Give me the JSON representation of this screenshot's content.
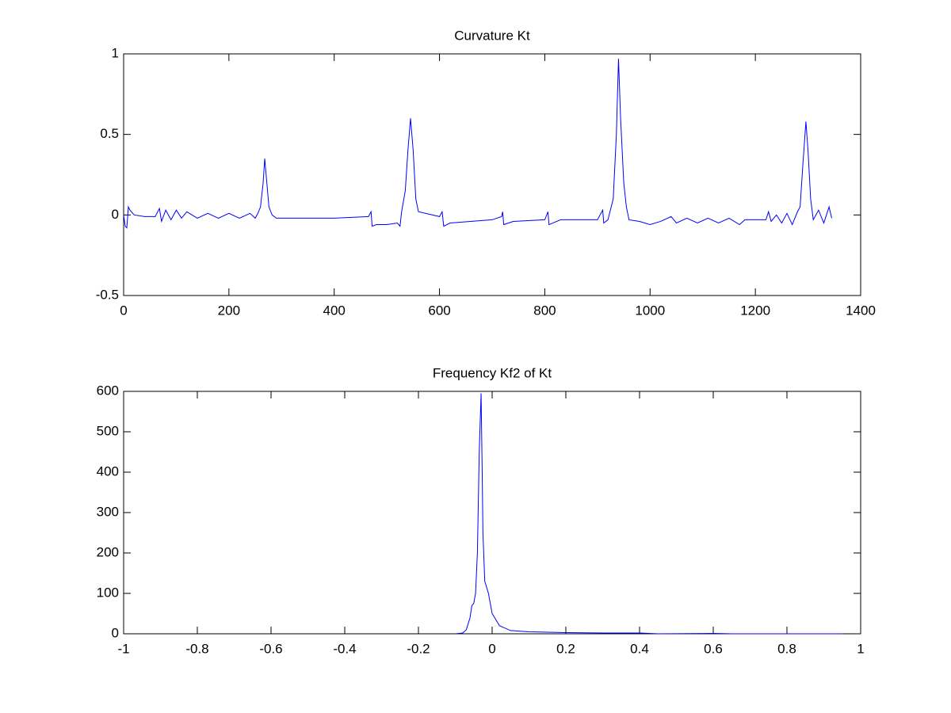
{
  "chart_data": [
    {
      "type": "line",
      "title": "Curvature Kt",
      "x": [
        0,
        3,
        6,
        9,
        12,
        20,
        40,
        60,
        68,
        72,
        80,
        90,
        100,
        110,
        120,
        140,
        160,
        180,
        200,
        220,
        240,
        250,
        255,
        260,
        265,
        268,
        272,
        276,
        282,
        290,
        400,
        465,
        470,
        472,
        480,
        500,
        520,
        525,
        528,
        535,
        540,
        545,
        550,
        555,
        560,
        600,
        605,
        608,
        620,
        700,
        718,
        720,
        722,
        740,
        800,
        806,
        808,
        830,
        900,
        910,
        912,
        920,
        930,
        936,
        940,
        944,
        950,
        955,
        960,
        980,
        1000,
        1020,
        1040,
        1050,
        1070,
        1090,
        1110,
        1130,
        1150,
        1170,
        1180,
        1220,
        1225,
        1230,
        1240,
        1250,
        1260,
        1270,
        1280,
        1285,
        1290,
        1296,
        1300,
        1305,
        1310,
        1320,
        1330,
        1340,
        1345
      ],
      "series": [
        {
          "color": "#0000ff",
          "values": [
            0,
            -0.07,
            -0.08,
            0.05,
            0.03,
            0,
            -0.01,
            -0.01,
            0.04,
            -0.04,
            0.03,
            -0.03,
            0.03,
            -0.02,
            0.02,
            -0.02,
            0.01,
            -0.02,
            0.01,
            -0.02,
            0.01,
            -0.02,
            0.01,
            0.05,
            0.2,
            0.35,
            0.2,
            0.05,
            0,
            -0.02,
            -0.02,
            -0.01,
            0.02,
            -0.07,
            -0.06,
            -0.06,
            -0.05,
            -0.07,
            0.02,
            0.15,
            0.4,
            0.6,
            0.4,
            0.1,
            0.02,
            -0.01,
            0.02,
            -0.07,
            -0.05,
            -0.03,
            -0.01,
            0.02,
            -0.06,
            -0.04,
            -0.03,
            0.02,
            -0.06,
            -0.03,
            -0.03,
            0.03,
            -0.05,
            -0.03,
            0.1,
            0.5,
            0.97,
            0.6,
            0.2,
            0.05,
            -0.03,
            -0.04,
            -0.06,
            -0.04,
            -0.01,
            -0.05,
            -0.02,
            -0.05,
            -0.02,
            -0.05,
            -0.02,
            -0.06,
            -0.03,
            -0.03,
            0.02,
            -0.04,
            0,
            -0.05,
            0.01,
            -0.06,
            0.02,
            0.05,
            0.3,
            0.58,
            0.4,
            0.1,
            -0.03,
            0.03,
            -0.05,
            0.05,
            -0.02
          ]
        }
      ],
      "xlim": [
        0,
        1400
      ],
      "xticks": [
        0,
        200,
        400,
        600,
        800,
        1000,
        1200,
        1400
      ],
      "ylim": [
        -0.5,
        1
      ],
      "yticks": [
        -0.5,
        0,
        0.5,
        1
      ]
    },
    {
      "type": "line",
      "title": "Frequency Kf2 of Kt",
      "x": [
        -0.1,
        -0.08,
        -0.07,
        -0.06,
        -0.055,
        -0.05,
        -0.045,
        -0.04,
        -0.035,
        -0.03,
        -0.027,
        -0.025,
        -0.02,
        -0.01,
        0,
        0.02,
        0.05,
        0.1,
        0.15,
        0.2,
        0.3,
        0.4,
        0.45,
        0.6,
        0.65,
        0.95
      ],
      "series": [
        {
          "color": "#0000ff",
          "values": [
            0,
            2,
            10,
            40,
            70,
            75,
            100,
            200,
            450,
            595,
            400,
            250,
            130,
            100,
            50,
            20,
            8,
            5,
            4,
            3,
            2,
            2,
            0,
            1,
            0,
            0
          ]
        }
      ],
      "xlim": [
        -1,
        1
      ],
      "xticks": [
        -1,
        -0.8,
        -0.6,
        -0.4,
        -0.2,
        0,
        0.2,
        0.4,
        0.6,
        0.8,
        1
      ],
      "ylim": [
        0,
        600
      ],
      "yticks": [
        0,
        100,
        200,
        300,
        400,
        500,
        600
      ]
    }
  ]
}
